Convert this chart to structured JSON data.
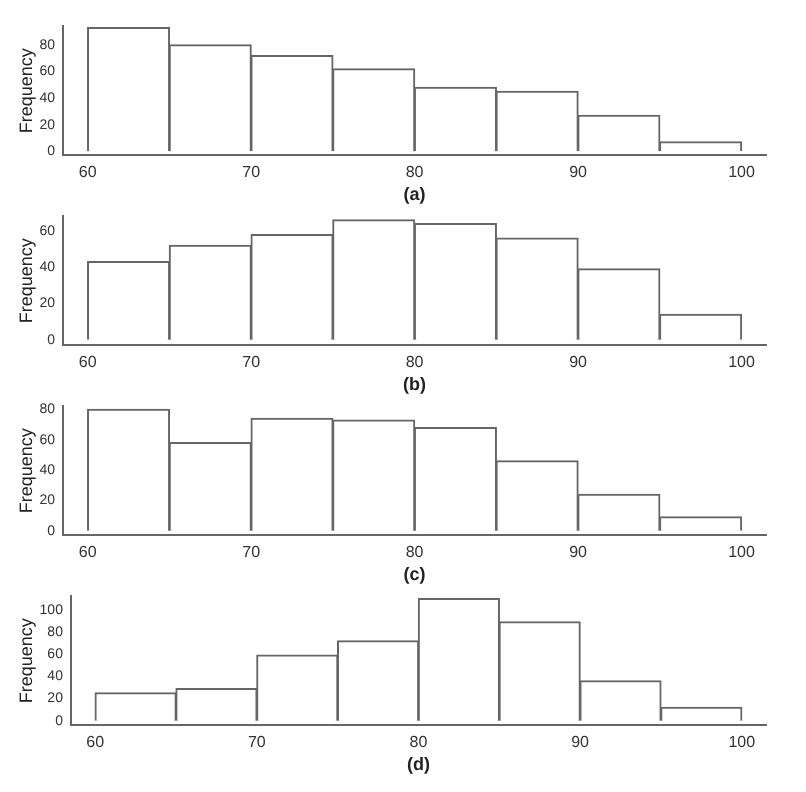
{
  "chart_data": [
    {
      "type": "histogram",
      "xlabel": "(a)",
      "ylabel": "Frequency",
      "bins": [
        60,
        65,
        70,
        75,
        80,
        85,
        90,
        95,
        100
      ],
      "values": [
        93,
        80,
        72,
        62,
        48,
        45,
        27,
        7
      ],
      "color": "#ffffff",
      "xlim": [
        58.5,
        101.5
      ],
      "xticks": [
        60,
        70,
        80,
        90,
        100
      ],
      "ylim": [
        -3,
        94
      ],
      "yticks": [
        0,
        20,
        40,
        60,
        80
      ]
    },
    {
      "type": "histogram",
      "xlabel": "(b)",
      "ylabel": "Frequency",
      "bins": [
        60,
        65,
        70,
        75,
        80,
        85,
        90,
        95,
        100
      ],
      "values": [
        43,
        52,
        58,
        66,
        64,
        56,
        39,
        14
      ],
      "color": "#ffffff",
      "xlim": [
        58.5,
        101.5
      ],
      "xticks": [
        60,
        70,
        80,
        90,
        100
      ],
      "ylim": [
        -3,
        68
      ],
      "yticks": [
        0,
        20,
        40,
        60
      ]
    },
    {
      "type": "histogram",
      "xlabel": "(c)",
      "ylabel": "Frequency",
      "bins": [
        60,
        65,
        70,
        75,
        80,
        85,
        90,
        95,
        100
      ],
      "values": [
        80,
        58,
        74,
        73,
        68,
        46,
        24,
        9
      ],
      "color": "#ffffff",
      "xlim": [
        58.5,
        101.5
      ],
      "xticks": [
        60,
        70,
        80,
        90,
        100
      ],
      "ylim": [
        -3,
        82
      ],
      "yticks": [
        0,
        20,
        40,
        60,
        80
      ]
    },
    {
      "type": "histogram",
      "xlabel": "(d)",
      "ylabel": "Frequency",
      "bins": [
        60,
        65,
        70,
        75,
        80,
        85,
        90,
        95,
        100
      ],
      "values": [
        25,
        29,
        59,
        72,
        110,
        89,
        36,
        12
      ],
      "color": "#ffffff",
      "xlim": [
        58.5,
        101.5
      ],
      "xticks": [
        60,
        70,
        80,
        90,
        100
      ],
      "ylim": [
        -4,
        112
      ],
      "yticks": [
        0,
        20,
        40,
        60,
        80,
        100
      ]
    }
  ]
}
